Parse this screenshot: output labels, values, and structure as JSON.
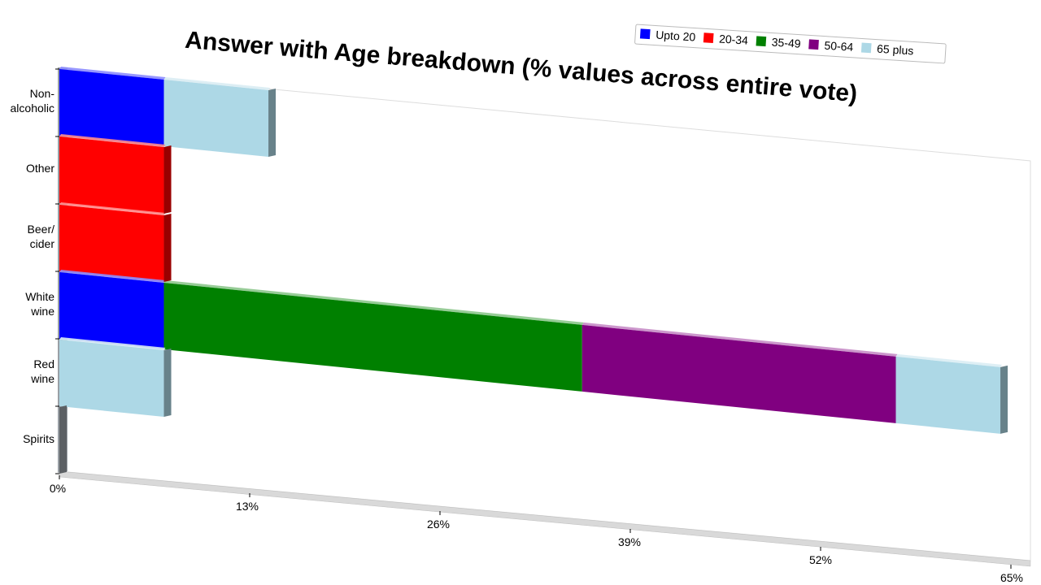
{
  "chart_data": {
    "type": "bar",
    "orientation": "horizontal",
    "stacked": true,
    "style": "3d-perspective",
    "title": "Answer with Age breakdown (% values across entire vote)",
    "categories": [
      [
        "Non-",
        "alcoholic"
      ],
      [
        "Other"
      ],
      [
        "Beer/",
        "cider"
      ],
      [
        "White",
        "wine"
      ],
      [
        "Red",
        "wine"
      ],
      [
        "Spirits"
      ]
    ],
    "series": [
      {
        "name": "Upto 20",
        "color": "#0000ff",
        "values": [
          7.14,
          0,
          0,
          7.14,
          0,
          0
        ]
      },
      {
        "name": "20-34",
        "color": "#ff0000",
        "values": [
          0,
          7.14,
          7.14,
          0,
          0,
          0
        ]
      },
      {
        "name": "35-49",
        "color": "#008000",
        "values": [
          0,
          0,
          0,
          28.57,
          0,
          0
        ]
      },
      {
        "name": "50-64",
        "color": "#800080",
        "values": [
          0,
          0,
          0,
          21.43,
          0,
          0
        ]
      },
      {
        "name": "65 plus",
        "color": "#add8e6",
        "values": [
          7.14,
          0,
          0,
          7.14,
          7.14,
          0
        ]
      }
    ],
    "xlim": [
      0,
      65
    ],
    "xticks": [
      "0%",
      "13%",
      "26%",
      "39%",
      "52%",
      "65%"
    ],
    "legend_position": "top-right",
    "grid": false
  }
}
